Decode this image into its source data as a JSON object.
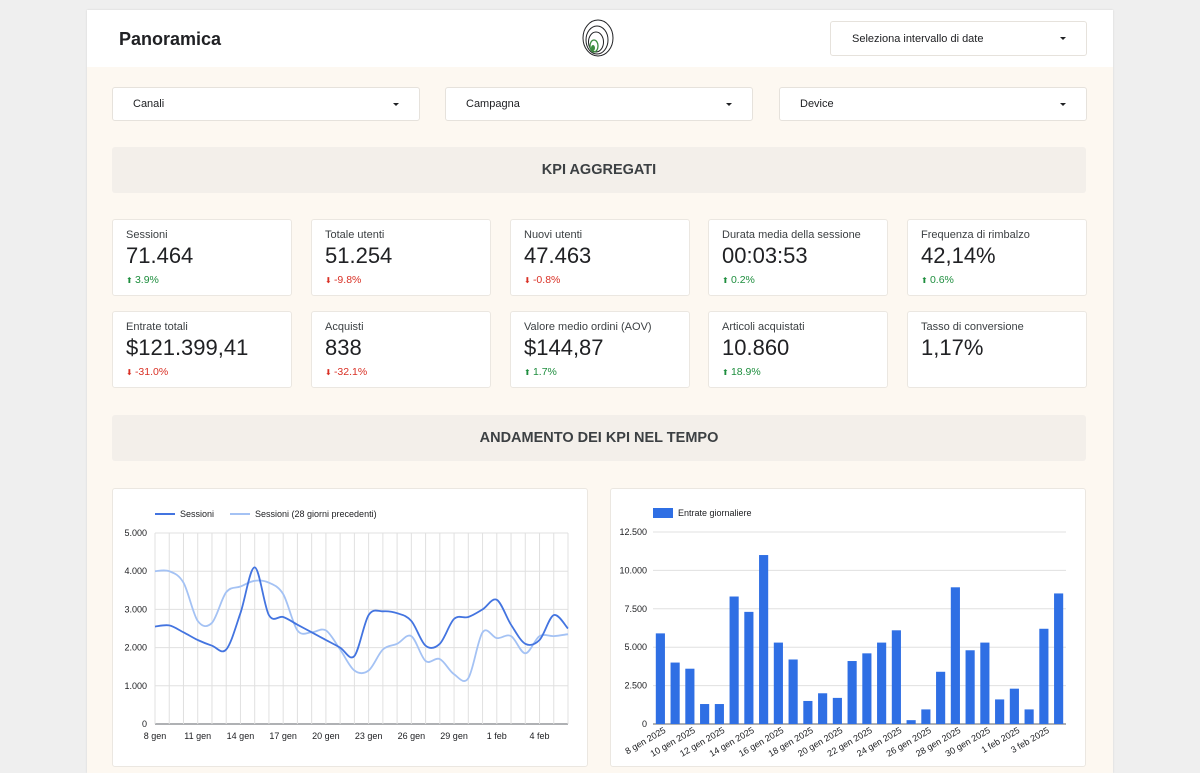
{
  "header": {
    "title": "Panoramica",
    "date_selector": "Seleziona intervallo di date"
  },
  "filters": {
    "channels": "Canali",
    "campaign": "Campagna",
    "device": "Device"
  },
  "sections": {
    "kpi_aggregated": "KPI AGGREGATI",
    "kpi_trend": "ANDAMENTO DEI KPI NEL TEMPO"
  },
  "kpis": [
    {
      "label": "Sessioni",
      "value": "71.464",
      "delta": "3.9%",
      "direction": "up"
    },
    {
      "label": "Totale utenti",
      "value": "51.254",
      "delta": "-9.8%",
      "direction": "down"
    },
    {
      "label": "Nuovi utenti",
      "value": "47.463",
      "delta": "-0.8%",
      "direction": "down"
    },
    {
      "label": "Durata media della sessione",
      "value": "00:03:53",
      "delta": "0.2%",
      "direction": "up"
    },
    {
      "label": "Frequenza di rimbalzo",
      "value": "42,14%",
      "delta": "0.6%",
      "direction": "up"
    },
    {
      "label": "Entrate totali",
      "value": "$121.399,41",
      "delta": "-31.0%",
      "direction": "down"
    },
    {
      "label": "Acquisti",
      "value": "838",
      "delta": "-32.1%",
      "direction": "down"
    },
    {
      "label": "Valore medio ordini (AOV)",
      "value": "$144,87",
      "delta": "1.7%",
      "direction": "up"
    },
    {
      "label": "Articoli acquistati",
      "value": "10.860",
      "delta": "18.9%",
      "direction": "up"
    },
    {
      "label": "Tasso di conversione",
      "value": "1,17%",
      "delta": "",
      "direction": ""
    }
  ],
  "colors": {
    "up": "#1e8e3e",
    "down": "#d93025",
    "series_primary": "#4374e0",
    "series_previous": "#a4c2f4",
    "bar": "#2f6fe4",
    "grid": "#e0e0e0"
  },
  "chart_data": [
    {
      "type": "line",
      "legend": [
        "Sessioni",
        "Sessioni (28 giorni precedenti)"
      ],
      "legend_position": "top",
      "x_ticks": [
        "8 gen",
        "11 gen",
        "14 gen",
        "17 gen",
        "20 gen",
        "23 gen",
        "26 gen",
        "29 gen",
        "1 feb",
        "4 feb"
      ],
      "y_ticks": [
        "5.000",
        "4.000",
        "3.000",
        "2.000",
        "1.000",
        "0"
      ],
      "ylim": [
        0,
        5000
      ],
      "grid": true,
      "series": [
        {
          "name": "Sessioni",
          "values": [
            2550,
            2580,
            2400,
            2200,
            2050,
            1950,
            2900,
            4100,
            2850,
            2800,
            2600,
            2400,
            2200,
            2000,
            1780,
            2850,
            2950,
            2900,
            2700,
            2050,
            2100,
            2750,
            2800,
            3000,
            3250,
            2600,
            2100,
            2200,
            2850,
            2500
          ]
        },
        {
          "name": "Sessioni (28 giorni precedenti)",
          "values": [
            4000,
            4000,
            3700,
            2700,
            2650,
            3450,
            3600,
            3750,
            3700,
            3400,
            2450,
            2400,
            2450,
            1950,
            1400,
            1400,
            1950,
            2100,
            2300,
            1650,
            1700,
            1300,
            1200,
            2400,
            2250,
            2300,
            1850,
            2300,
            2300,
            2350
          ]
        }
      ]
    },
    {
      "type": "bar",
      "legend": [
        "Entrate giornaliere"
      ],
      "legend_position": "top",
      "x_ticks": [
        "8 gen 2025",
        "10 gen 2025",
        "12 gen 2025",
        "14 gen 2025",
        "16 gen 2025",
        "18 gen 2025",
        "20 gen 2025",
        "22 gen 2025",
        "24 gen 2025",
        "26 gen 2025",
        "28 gen 2025",
        "30 gen 2025",
        "1 feb 2025",
        "3 feb 2025"
      ],
      "y_ticks": [
        "12.500",
        "10.000",
        "7.500",
        "5.000",
        "2.500",
        "0"
      ],
      "ylim": [
        0,
        12500
      ],
      "grid": true,
      "series": [
        {
          "name": "Entrate giornaliere",
          "values": [
            5900,
            4000,
            3600,
            1300,
            1300,
            8300,
            7300,
            11000,
            5300,
            4200,
            1500,
            2000,
            1700,
            4100,
            4600,
            5300,
            6100,
            250,
            950,
            3400,
            8900,
            4800,
            5300,
            1600,
            2300,
            950,
            6200,
            8500
          ]
        }
      ]
    }
  ]
}
